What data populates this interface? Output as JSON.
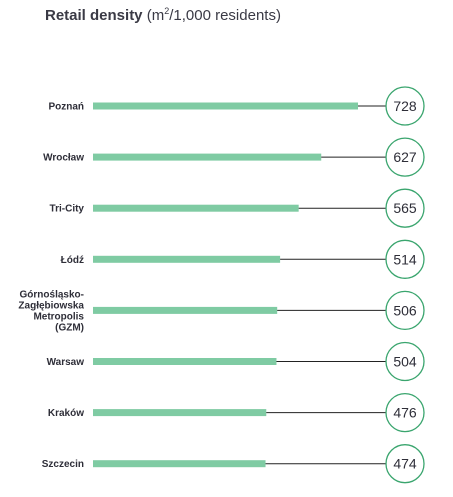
{
  "title": {
    "main": "Retail density",
    "unit_prefix": "(m",
    "unit_sup": "2",
    "unit_suffix": "/1,000 residents)"
  },
  "colors": {
    "bar": "#7fcba3",
    "circle": "#3aa56e",
    "line": "#222222"
  },
  "chart_data": {
    "type": "bar",
    "orientation": "horizontal",
    "title": "Retail density (m²/1,000 residents)",
    "xlabel": "",
    "ylabel": "",
    "xlim": [
      0,
      800
    ],
    "grid": false,
    "categories": [
      [
        "Poznań"
      ],
      [
        "Wrocław"
      ],
      [
        "Tri-City"
      ],
      [
        "Łódź"
      ],
      [
        "Górnośląsko-",
        "Zagłębiowska",
        "Metropolis",
        "(GZM)"
      ],
      [
        "Warsaw"
      ],
      [
        "Kraków"
      ],
      [
        "Szczecin"
      ]
    ],
    "values": [
      728,
      627,
      565,
      514,
      506,
      504,
      476,
      474
    ]
  }
}
